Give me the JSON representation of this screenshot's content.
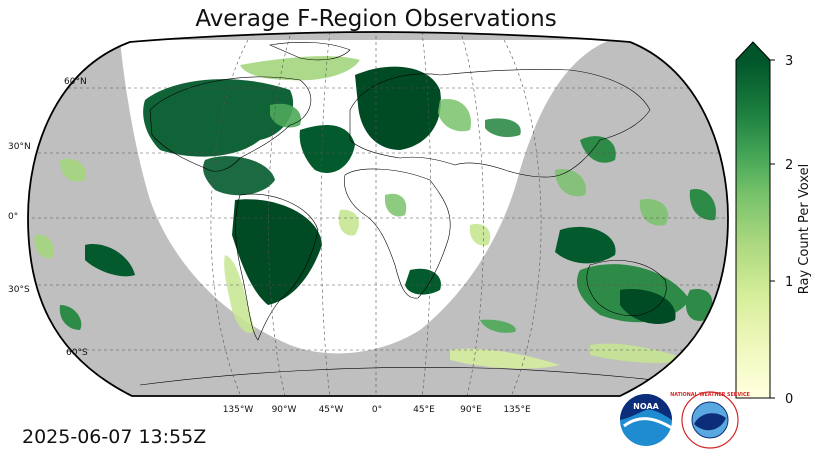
{
  "title": "Average F-Region Observations",
  "timestamp": "2025-06-07 13:55Z",
  "map": {
    "projection": "robinson",
    "lat_labels": [
      "60°N",
      "30°N",
      "0°",
      "30°S",
      "60°S"
    ],
    "lon_labels": [
      "135°W",
      "90°W",
      "45°W",
      "0°",
      "45°E",
      "90°E",
      "135°E"
    ],
    "night_shading_color": "#bfbfbf",
    "day_color": "#ffffff"
  },
  "colorbar": {
    "label": "Ray Count Per Voxel",
    "ticks": [
      "0",
      "1",
      "2",
      "3"
    ],
    "min": 0,
    "max": 3,
    "extend": "max",
    "colormap": "YlGn",
    "colors": [
      "#ffffe0",
      "#f4f9c4",
      "#e3f2a8",
      "#c6e691",
      "#a3d67d",
      "#78c26a",
      "#4ea85a",
      "#2e8b47",
      "#147038",
      "#035a2c",
      "#004a24"
    ]
  },
  "logos": {
    "noaa_text": "NOAA",
    "nws_text": "NATIONAL WEATHER SERVICE"
  }
}
